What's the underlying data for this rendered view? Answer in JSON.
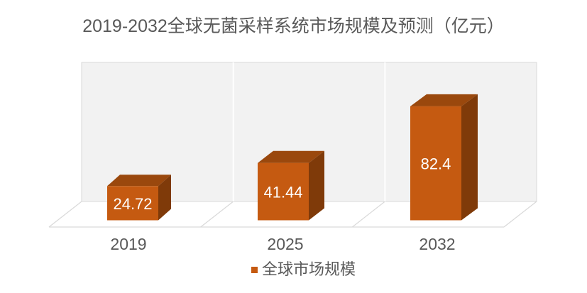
{
  "page": {
    "background": "#ffffff"
  },
  "chart_data": {
    "type": "bar",
    "style": "3d-box",
    "title": "2019-2032全球无菌采样系统市场规模及预测（亿元）",
    "categories": [
      "2019",
      "2025",
      "2032"
    ],
    "series": [
      {
        "name": "全球市场规模",
        "color": "#C55A11",
        "values": [
          24.72,
          41.44,
          82.4
        ]
      }
    ],
    "data_labels": [
      "24.72",
      "41.44",
      "82.4"
    ],
    "unit": "亿元",
    "legend": {
      "position": "bottom",
      "entries": [
        "全球市场规模"
      ]
    },
    "axes": {
      "x": {
        "labels": [
          "2019",
          "2025",
          "2032"
        ]
      },
      "y": {
        "visible": false
      }
    },
    "grid": false,
    "colors": {
      "bar_front": "#C55A11",
      "bar_top": "#9A480D",
      "bar_side": "#7F3A09",
      "wall": "#F2F2F2",
      "wall_edge": "#D9D9D9",
      "text": "#595959",
      "label_text": "#FFFFFF"
    }
  }
}
